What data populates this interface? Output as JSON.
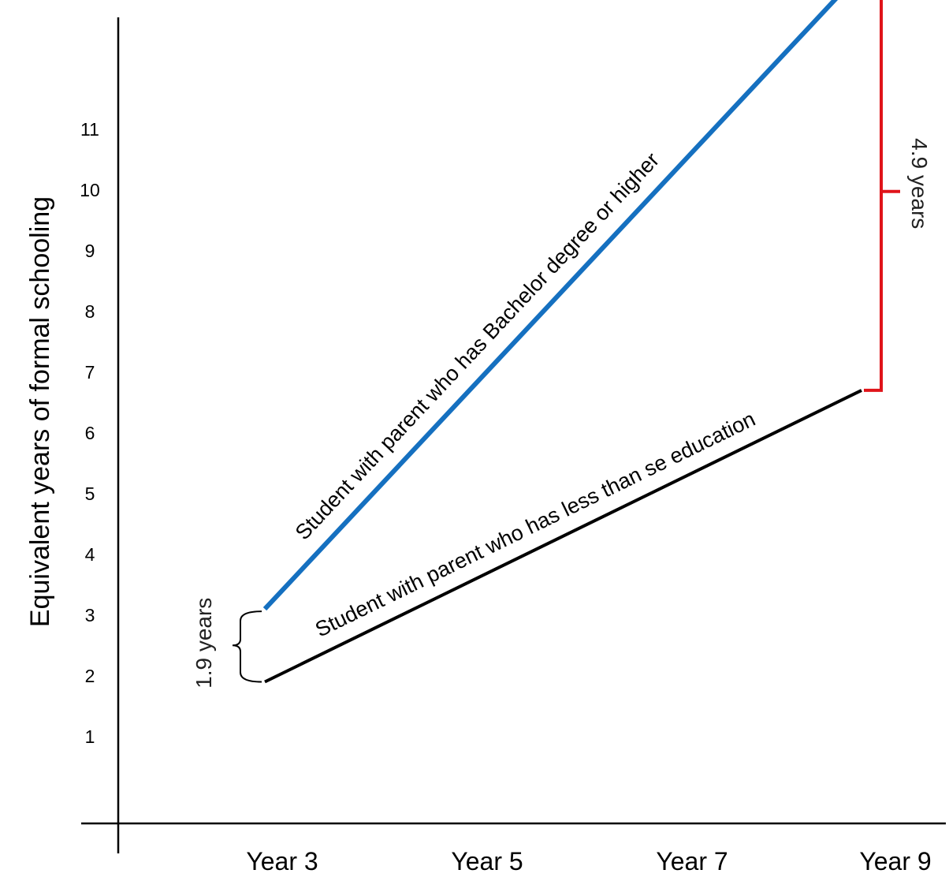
{
  "chart_data": {
    "type": "line",
    "title": "",
    "xlabel": "",
    "ylabel": "Equivalent years of formal schooling",
    "categories": [
      "Year 3",
      "Year 5",
      "Year 7",
      "Year 9"
    ],
    "y_ticks": [
      "1",
      "2",
      "3",
      "4",
      "5",
      "6",
      "7",
      "8",
      "9",
      "10",
      "11"
    ],
    "ylim": [
      0,
      13.6
    ],
    "grid": false,
    "legend": "none",
    "series": [
      {
        "name": "Student with parent who has Bachelor degree or higher",
        "color": "#1570c0",
        "x": [
          "Year 3",
          "Year 9"
        ],
        "values": [
          3.1,
          13.6
        ]
      },
      {
        "name": "Student with parent who has less than se education",
        "color": "#000000",
        "x": [
          "Year 3",
          "Year 9"
        ],
        "values": [
          1.9,
          6.7
        ]
      }
    ],
    "annotations": [
      {
        "text": "1.9 years",
        "at": "Year 3",
        "style": "curly-brace",
        "color": "#000000"
      },
      {
        "text": "4.9 years",
        "at": "Year 9",
        "style": "square-bracket",
        "color": "#e0141a"
      }
    ]
  }
}
